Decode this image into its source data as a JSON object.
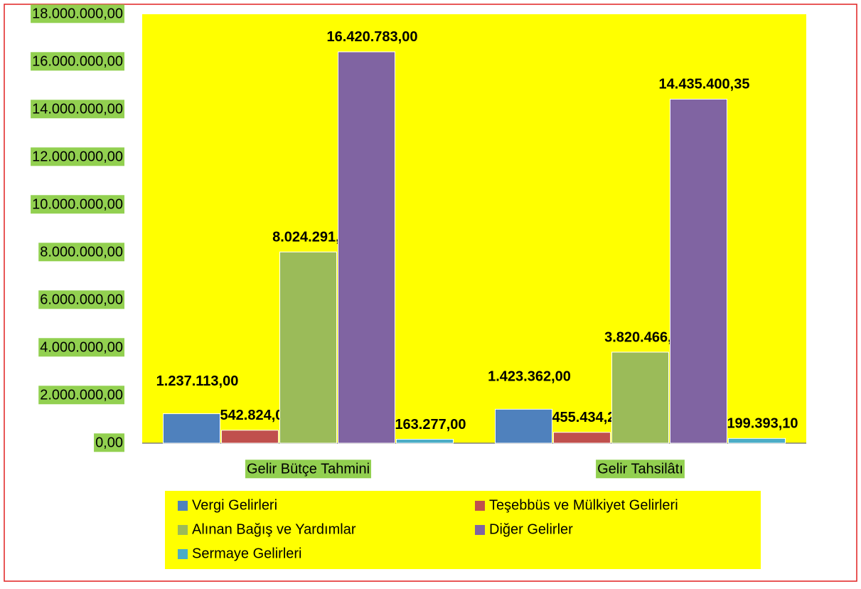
{
  "chart_data": {
    "type": "bar",
    "categories": [
      "Gelir Bütçe Tahmini",
      "Gelir Tahsilâtı"
    ],
    "series": [
      {
        "name": "Vergi Gelirleri",
        "color": "#4f81bd",
        "values": [
          1237113,
          1423362
        ],
        "value_labels": [
          "1.237.113,00",
          "1.423.362,00"
        ]
      },
      {
        "name": "Teşebbüs ve Mülkiyet Gelirleri",
        "color": "#c0504d",
        "values": [
          542824,
          455434.27
        ],
        "value_labels": [
          "542.824,00",
          "455.434,27"
        ]
      },
      {
        "name": "Alınan Bağış ve Yardımlar",
        "color": "#9bbb59",
        "values": [
          8024291,
          3820466.88
        ],
        "value_labels": [
          "8.024.291,00",
          "3.820.466,88"
        ]
      },
      {
        "name": "Diğer Gelirler",
        "color": "#8064a2",
        "values": [
          16420783,
          14435400.35
        ],
        "value_labels": [
          "16.420.783,00",
          "14.435.400,35"
        ]
      },
      {
        "name": "Sermaye Gelirleri",
        "color": "#4bacc6",
        "values": [
          163277,
          199393.1
        ],
        "value_labels": [
          "163.277,00",
          "199.393,10"
        ]
      }
    ],
    "ylim": [
      0,
      18000000
    ],
    "yticks": [
      {
        "value": 0,
        "label": "0,00"
      },
      {
        "value": 2000000,
        "label": "2.000.000,00"
      },
      {
        "value": 4000000,
        "label": "4.000.000,00"
      },
      {
        "value": 6000000,
        "label": "6.000.000,00"
      },
      {
        "value": 8000000,
        "label": "8.000.000,00"
      },
      {
        "value": 10000000,
        "label": "10.000.000,00"
      },
      {
        "value": 12000000,
        "label": "12.000.000,00"
      },
      {
        "value": 14000000,
        "label": "14.000.000,00"
      },
      {
        "value": 16000000,
        "label": "16.000.000,00"
      },
      {
        "value": 18000000,
        "label": "18.000.000,00"
      }
    ],
    "grid": false,
    "legend": "bottom"
  }
}
